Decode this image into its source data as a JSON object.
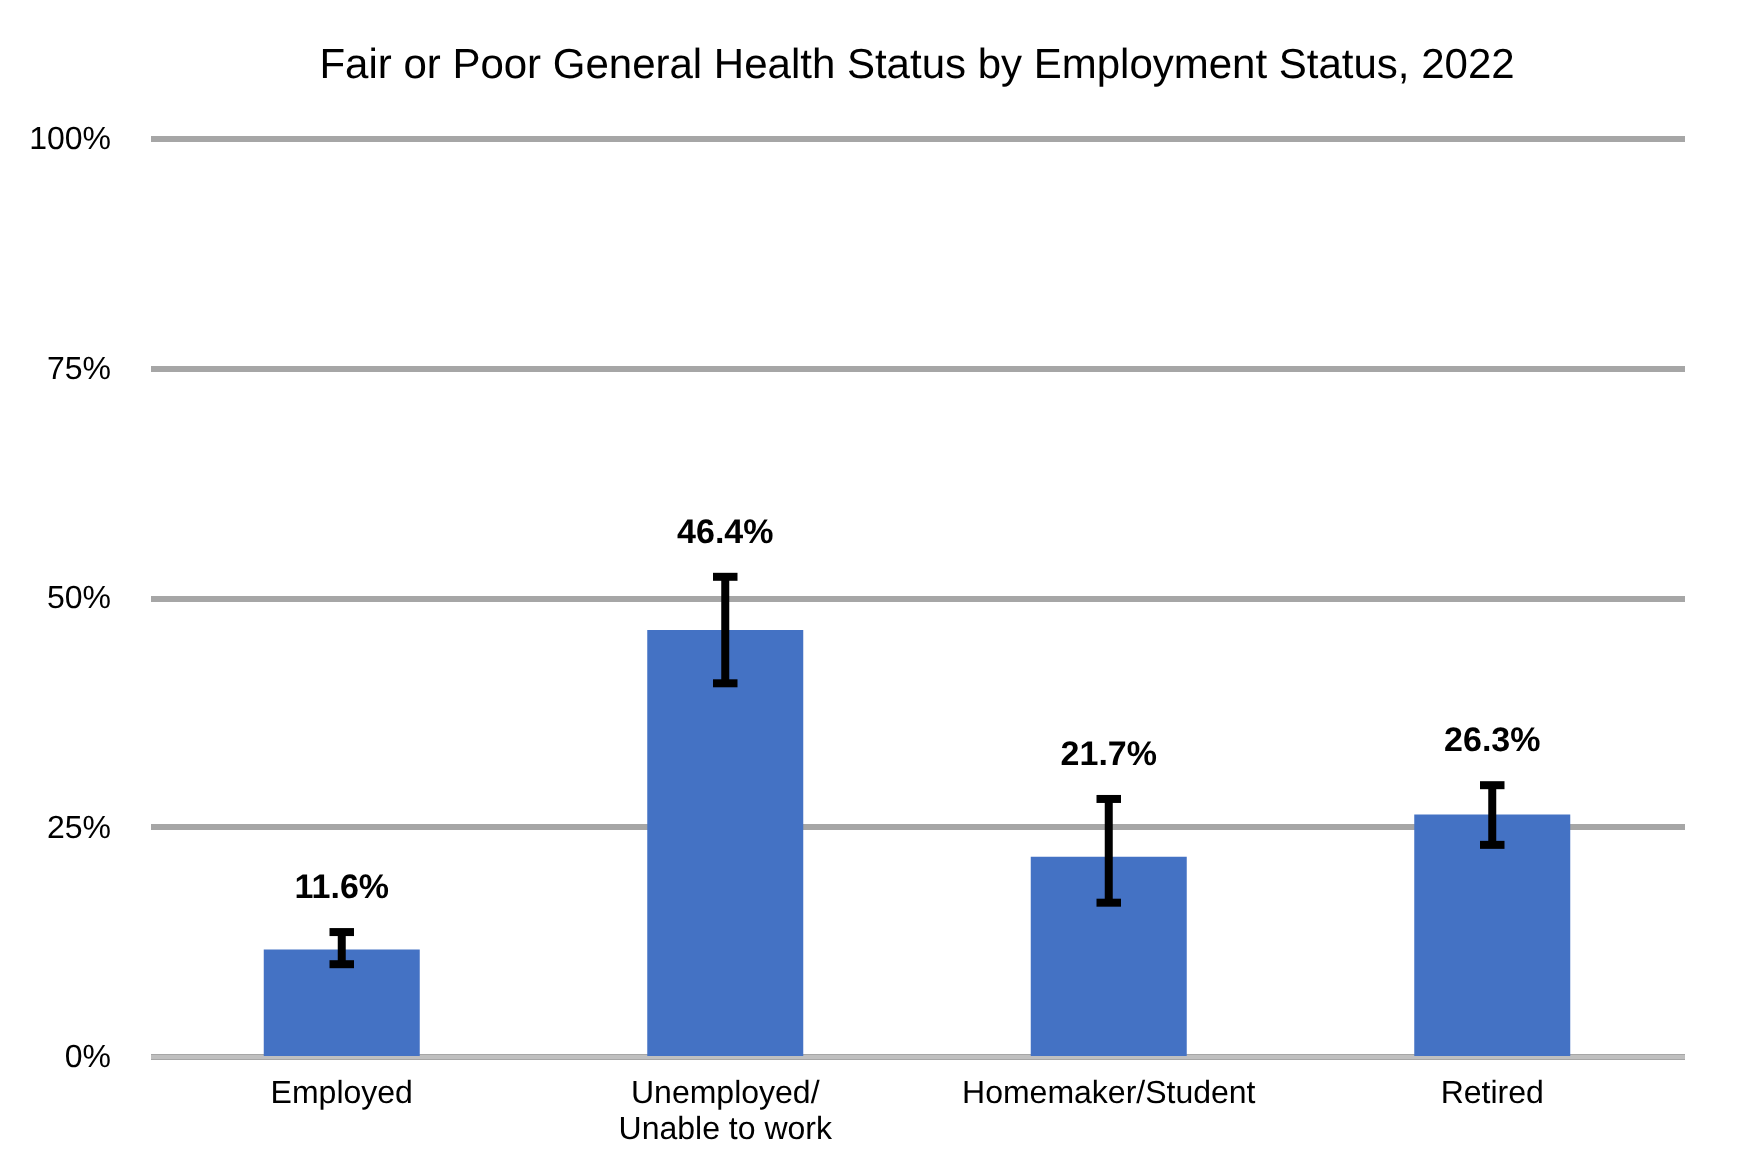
{
  "chart_data": {
    "type": "bar",
    "title": "Fair or Poor General Health Status by Employment Status, 2022",
    "categories": [
      "Employed",
      "Unemployed/\nUnable to work",
      "Homemaker/Student",
      "Retired"
    ],
    "values": [
      11.6,
      46.4,
      21.7,
      26.3
    ],
    "color": "#4472c4",
    "errors": [
      [
        10.0,
        13.5
      ],
      [
        40.6,
        52.2
      ],
      [
        16.7,
        28.0
      ],
      [
        23.0,
        29.5
      ]
    ],
    "value_labels": [
      "11.6%",
      "46.4%",
      "21.7%",
      "26.3%"
    ],
    "ylim": [
      0,
      100
    ],
    "yticks": [
      {
        "value": 0,
        "label": "0%"
      },
      {
        "value": 25,
        "label": "25%"
      },
      {
        "value": 50,
        "label": "50%"
      },
      {
        "value": 75,
        "label": "75%"
      },
      {
        "value": 100,
        "label": "100%"
      }
    ],
    "grid": "y"
  }
}
